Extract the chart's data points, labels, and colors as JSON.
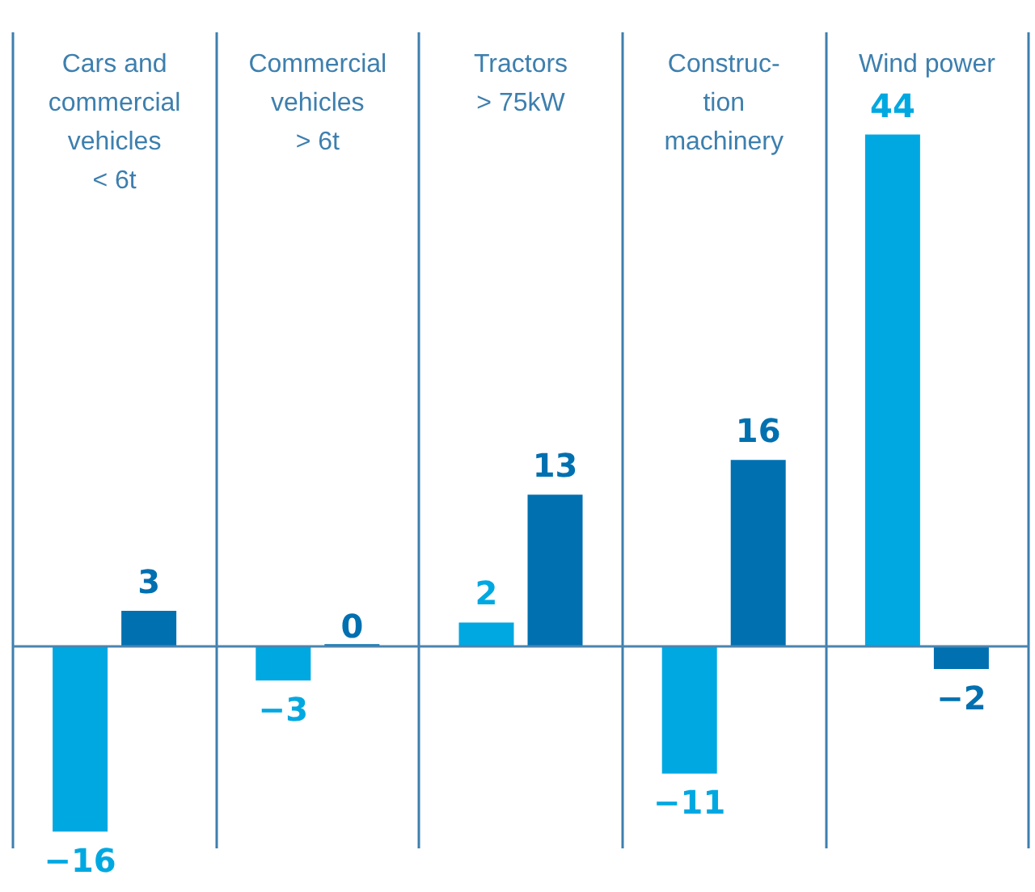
{
  "chart_data": {
    "type": "bar",
    "categories": [
      "Cars and\ncommercial\nvehicles\n< 6t",
      "Commercial\nvehicles\n> 6t",
      "Tractors\n> 75kW",
      "Construc-\ntion\nmachinery",
      "Wind power"
    ],
    "series": [
      {
        "color": "#00a8e1",
        "values": [
          -16,
          -3,
          2,
          -11,
          44
        ],
        "value_labels": [
          "−16",
          "−3",
          "2",
          "−11",
          "44"
        ]
      },
      {
        "color": "#0070b0",
        "values": [
          3,
          0,
          13,
          16,
          -2
        ],
        "value_labels": [
          "3",
          "0",
          "13",
          "16",
          "−2"
        ]
      }
    ],
    "ref_lines": [
      {
        "axis": "y",
        "value": 0,
        "color": "#4a84b0"
      }
    ],
    "grid": "x",
    "tick_labels": "x"
  }
}
